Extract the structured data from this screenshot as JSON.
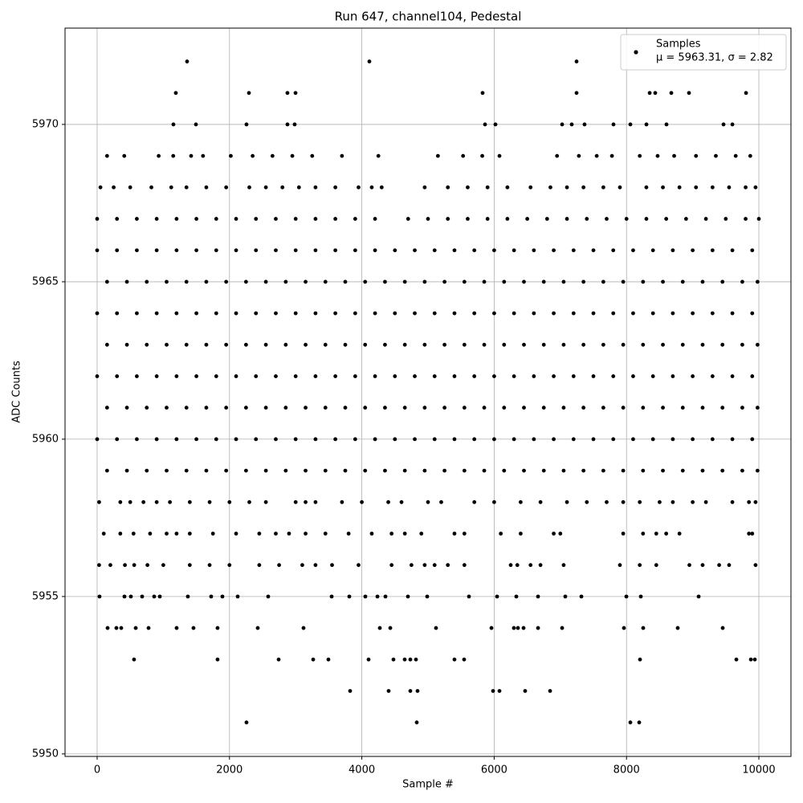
{
  "chart_data": {
    "type": "scatter",
    "title": "Run 647, channel104, Pedestal",
    "xlabel": "Sample #",
    "ylabel": "ADC Counts",
    "xlim": [
      -485,
      10485
    ],
    "ylim": [
      5949.92,
      5973.06
    ],
    "xticks": [
      0,
      2000,
      4000,
      6000,
      8000,
      10000
    ],
    "yticks": [
      5950,
      5955,
      5960,
      5965,
      5970
    ],
    "grid": true,
    "legend": "upper right",
    "series": [
      {
        "name": "Samples",
        "note": "μ = 5963.31, σ = 2.82",
        "color": "#000000",
        "x": [
          1359,
          4114,
          7245,
          1189,
          2294,
          2876,
          2998,
          5825,
          7245,
          8350,
          8434,
          8677,
          8944,
          9806,
          1153,
          1493,
          2257,
          2876,
          2985,
          5862,
          6019,
          7027,
          7172,
          7366,
          7803,
          8058,
          8301,
          8604,
          9466,
          9600,
          150,
          410,
          930,
          1150,
          1420,
          1600,
          2020,
          2350,
          2650,
          2950,
          3250,
          3700,
          4250,
          5150,
          5530,
          5820,
          6080,
          6950,
          7280,
          7550,
          7780,
          8200,
          8470,
          8720,
          9050,
          9350,
          9650,
          9870,
          50,
          250,
          500,
          820,
          1120,
          1350,
          1650,
          1950,
          2300,
          2550,
          2800,
          3050,
          3300,
          3600,
          3950,
          4150,
          4300,
          4950,
          5300,
          5600,
          5900,
          6200,
          6550,
          6850,
          7100,
          7350,
          7650,
          7900,
          8300,
          8550,
          8800,
          9050,
          9300,
          9550,
          9800,
          9950,
          0,
          300,
          600,
          900,
          1200,
          1500,
          1800,
          2100,
          2400,
          2700,
          3000,
          3300,
          3600,
          3900,
          4200,
          4700,
          5000,
          5300,
          5600,
          5900,
          6200,
          6500,
          6800,
          7100,
          7400,
          7700,
          8000,
          8300,
          8600,
          8900,
          9200,
          9500,
          9800,
          10000,
          0,
          300,
          600,
          900,
          1200,
          1500,
          1800,
          2100,
          2400,
          2700,
          3000,
          3300,
          3600,
          3900,
          4200,
          4500,
          4800,
          5100,
          5400,
          5700,
          6000,
          6300,
          6600,
          6900,
          7200,
          7500,
          7800,
          8100,
          8400,
          8700,
          9000,
          9300,
          9600,
          9900,
          150,
          450,
          750,
          1050,
          1350,
          1650,
          1950,
          2250,
          2550,
          2850,
          3150,
          3450,
          3750,
          4050,
          4350,
          4650,
          4950,
          5250,
          5550,
          5850,
          6150,
          6450,
          6750,
          7050,
          7350,
          7650,
          7950,
          8250,
          8550,
          8850,
          9150,
          9450,
          9750,
          9980,
          0,
          300,
          600,
          900,
          1200,
          1500,
          1800,
          2100,
          2400,
          2700,
          3000,
          3300,
          3600,
          3900,
          4200,
          4500,
          4800,
          5100,
          5400,
          5700,
          6000,
          6300,
          6600,
          6900,
          7200,
          7500,
          7800,
          8100,
          8400,
          8700,
          9000,
          9300,
          9600,
          9900,
          150,
          450,
          750,
          1050,
          1350,
          1650,
          1950,
          2250,
          2550,
          2850,
          3150,
          3450,
          3750,
          4050,
          4350,
          4650,
          4950,
          5250,
          5550,
          5850,
          6150,
          6450,
          6750,
          7050,
          7350,
          7650,
          7950,
          8250,
          8550,
          8850,
          9150,
          9450,
          9750,
          9980,
          0,
          300,
          600,
          900,
          1200,
          1500,
          1800,
          2100,
          2400,
          2700,
          3000,
          3300,
          3600,
          3900,
          4200,
          4500,
          4800,
          5100,
          5400,
          5700,
          6000,
          6300,
          6600,
          6900,
          7200,
          7500,
          7800,
          8100,
          8400,
          8700,
          9000,
          9300,
          9600,
          9900,
          150,
          450,
          750,
          1050,
          1350,
          1650,
          1950,
          2250,
          2550,
          2850,
          3150,
          3450,
          3750,
          4050,
          4350,
          4650,
          4950,
          5250,
          5550,
          5850,
          6150,
          6450,
          6750,
          7050,
          7350,
          7650,
          7950,
          8250,
          8550,
          8850,
          9150,
          9450,
          9750,
          9980,
          0,
          300,
          600,
          900,
          1200,
          1500,
          1800,
          2100,
          2400,
          2700,
          3000,
          3300,
          3600,
          3900,
          4200,
          4500,
          4800,
          5100,
          5400,
          5700,
          6000,
          6300,
          6600,
          6900,
          7200,
          7500,
          7800,
          8100,
          8400,
          8700,
          9000,
          9300,
          9600,
          9900,
          150,
          450,
          750,
          1050,
          1350,
          1650,
          1950,
          2250,
          2550,
          2850,
          3150,
          3450,
          3750,
          4050,
          4350,
          4650,
          4950,
          5250,
          5550,
          5850,
          6150,
          6450,
          6750,
          7050,
          7350,
          7650,
          7950,
          8250,
          8550,
          8850,
          9150,
          9450,
          9750,
          9980,
          30,
          350,
          500,
          700,
          900,
          1100,
          1400,
          1700,
          2000,
          2300,
          2550,
          3000,
          3150,
          3300,
          3700,
          4000,
          4400,
          4600,
          5000,
          5200,
          5700,
          6000,
          6400,
          6700,
          7100,
          7400,
          7700,
          7950,
          8200,
          8500,
          8700,
          9000,
          9200,
          9600,
          9850,
          9950,
          100,
          350,
          550,
          800,
          1050,
          1200,
          1400,
          1750,
          2100,
          2450,
          2700,
          2900,
          3150,
          3450,
          3800,
          4150,
          4450,
          4650,
          4900,
          5400,
          5550,
          6100,
          6400,
          6900,
          7000,
          7950,
          8250,
          8450,
          8600,
          8800,
          9850,
          9900,
          30,
          200,
          420,
          560,
          760,
          1000,
          1400,
          1700,
          2000,
          2450,
          2750,
          3100,
          3300,
          3550,
          3950,
          4450,
          4750,
          4950,
          5100,
          5300,
          5550,
          6250,
          6350,
          6550,
          6700,
          7050,
          7900,
          8200,
          8450,
          8950,
          9150,
          9400,
          9550,
          9950,
          36,
          413,
          510,
          680,
          862,
          947,
          1371,
          1723,
          1893,
          2124,
          2585,
          3544,
          3811,
          4053,
          4236,
          4357,
          4697,
          4988,
          5619,
          6044,
          6335,
          6663,
          7075,
          7318,
          7998,
          8216,
          9090,
          158,
          291,
          364,
          583,
          777,
          1201,
          1456,
          1820,
          2427,
          3119,
          4272,
          4430,
          5121,
          5959,
          6298,
          6359,
          6444,
          6663,
          7027,
          7961,
          8252,
          8774,
          9454,
          558,
          1820,
          2743,
          3265,
          3495,
          4102,
          4478,
          4648,
          4733,
          4818,
          5400,
          5546,
          8204,
          9660,
          9879,
          9939,
          3823,
          4405,
          4733,
          4842,
          5983,
          6080,
          6468,
          6845,
          2257,
          4830,
          8058,
          8192
        ],
        "values": [
          5972,
          5972,
          5972,
          5971,
          5971,
          5971,
          5971,
          5971,
          5971,
          5971,
          5971,
          5971,
          5971,
          5971,
          5970,
          5970,
          5970,
          5970,
          5970,
          5970,
          5970,
          5970,
          5970,
          5970,
          5970,
          5970,
          5970,
          5970,
          5970,
          5970,
          5969,
          5969,
          5969,
          5969,
          5969,
          5969,
          5969,
          5969,
          5969,
          5969,
          5969,
          5969,
          5969,
          5969,
          5969,
          5969,
          5969,
          5969,
          5969,
          5969,
          5969,
          5969,
          5969,
          5969,
          5969,
          5969,
          5969,
          5969,
          5968,
          5968,
          5968,
          5968,
          5968,
          5968,
          5968,
          5968,
          5968,
          5968,
          5968,
          5968,
          5968,
          5968,
          5968,
          5968,
          5968,
          5968,
          5968,
          5968,
          5968,
          5968,
          5968,
          5968,
          5968,
          5968,
          5968,
          5968,
          5968,
          5968,
          5968,
          5968,
          5968,
          5968,
          5968,
          5968,
          5967,
          5967,
          5967,
          5967,
          5967,
          5967,
          5967,
          5967,
          5967,
          5967,
          5967,
          5967,
          5967,
          5967,
          5967,
          5967,
          5967,
          5967,
          5967,
          5967,
          5967,
          5967,
          5967,
          5967,
          5967,
          5967,
          5967,
          5967,
          5967,
          5967,
          5967,
          5967,
          5967,
          5967,
          5966,
          5966,
          5966,
          5966,
          5966,
          5966,
          5966,
          5966,
          5966,
          5966,
          5966,
          5966,
          5966,
          5966,
          5966,
          5966,
          5966,
          5966,
          5966,
          5966,
          5966,
          5966,
          5966,
          5966,
          5966,
          5966,
          5966,
          5966,
          5966,
          5966,
          5966,
          5966,
          5966,
          5966,
          5965,
          5965,
          5965,
          5965,
          5965,
          5965,
          5965,
          5965,
          5965,
          5965,
          5965,
          5965,
          5965,
          5965,
          5965,
          5965,
          5965,
          5965,
          5965,
          5965,
          5965,
          5965,
          5965,
          5965,
          5965,
          5965,
          5965,
          5965,
          5965,
          5965,
          5965,
          5965,
          5965,
          5965,
          5964,
          5964,
          5964,
          5964,
          5964,
          5964,
          5964,
          5964,
          5964,
          5964,
          5964,
          5964,
          5964,
          5964,
          5964,
          5964,
          5964,
          5964,
          5964,
          5964,
          5964,
          5964,
          5964,
          5964,
          5964,
          5964,
          5964,
          5964,
          5964,
          5964,
          5964,
          5964,
          5964,
          5964,
          5963,
          5963,
          5963,
          5963,
          5963,
          5963,
          5963,
          5963,
          5963,
          5963,
          5963,
          5963,
          5963,
          5963,
          5963,
          5963,
          5963,
          5963,
          5963,
          5963,
          5963,
          5963,
          5963,
          5963,
          5963,
          5963,
          5963,
          5963,
          5963,
          5963,
          5963,
          5963,
          5963,
          5963,
          5962,
          5962,
          5962,
          5962,
          5962,
          5962,
          5962,
          5962,
          5962,
          5962,
          5962,
          5962,
          5962,
          5962,
          5962,
          5962,
          5962,
          5962,
          5962,
          5962,
          5962,
          5962,
          5962,
          5962,
          5962,
          5962,
          5962,
          5962,
          5962,
          5962,
          5962,
          5962,
          5962,
          5962,
          5961,
          5961,
          5961,
          5961,
          5961,
          5961,
          5961,
          5961,
          5961,
          5961,
          5961,
          5961,
          5961,
          5961,
          5961,
          5961,
          5961,
          5961,
          5961,
          5961,
          5961,
          5961,
          5961,
          5961,
          5961,
          5961,
          5961,
          5961,
          5961,
          5961,
          5961,
          5961,
          5961,
          5961,
          5960,
          5960,
          5960,
          5960,
          5960,
          5960,
          5960,
          5960,
          5960,
          5960,
          5960,
          5960,
          5960,
          5960,
          5960,
          5960,
          5960,
          5960,
          5960,
          5960,
          5960,
          5960,
          5960,
          5960,
          5960,
          5960,
          5960,
          5960,
          5960,
          5960,
          5960,
          5960,
          5960,
          5960,
          5959,
          5959,
          5959,
          5959,
          5959,
          5959,
          5959,
          5959,
          5959,
          5959,
          5959,
          5959,
          5959,
          5959,
          5959,
          5959,
          5959,
          5959,
          5959,
          5959,
          5959,
          5959,
          5959,
          5959,
          5959,
          5959,
          5959,
          5959,
          5959,
          5959,
          5959,
          5959,
          5959,
          5959,
          5958,
          5958,
          5958,
          5958,
          5958,
          5958,
          5958,
          5958,
          5958,
          5958,
          5958,
          5958,
          5958,
          5958,
          5958,
          5958,
          5958,
          5958,
          5958,
          5958,
          5958,
          5958,
          5958,
          5958,
          5958,
          5958,
          5958,
          5958,
          5958,
          5958,
          5958,
          5958,
          5958,
          5958,
          5958,
          5958,
          5957,
          5957,
          5957,
          5957,
          5957,
          5957,
          5957,
          5957,
          5957,
          5957,
          5957,
          5957,
          5957,
          5957,
          5957,
          5957,
          5957,
          5957,
          5957,
          5957,
          5957,
          5957,
          5957,
          5957,
          5957,
          5957,
          5957,
          5957,
          5957,
          5957,
          5957,
          5957,
          5956,
          5956,
          5956,
          5956,
          5956,
          5956,
          5956,
          5956,
          5956,
          5956,
          5956,
          5956,
          5956,
          5956,
          5956,
          5956,
          5956,
          5956,
          5956,
          5956,
          5956,
          5956,
          5956,
          5956,
          5956,
          5956,
          5956,
          5956,
          5956,
          5956,
          5956,
          5956,
          5956,
          5956,
          5955,
          5955,
          5955,
          5955,
          5955,
          5955,
          5955,
          5955,
          5955,
          5955,
          5955,
          5955,
          5955,
          5955,
          5955,
          5955,
          5955,
          5955,
          5955,
          5955,
          5955,
          5955,
          5955,
          5955,
          5955,
          5955,
          5955,
          5954,
          5954,
          5954,
          5954,
          5954,
          5954,
          5954,
          5954,
          5954,
          5954,
          5954,
          5954,
          5954,
          5954,
          5954,
          5954,
          5954,
          5954,
          5954,
          5954,
          5954,
          5954,
          5954,
          5953,
          5953,
          5953,
          5953,
          5953,
          5953,
          5953,
          5953,
          5953,
          5953,
          5953,
          5953,
          5953,
          5953,
          5953,
          5953,
          5952,
          5952,
          5952,
          5952,
          5952,
          5952,
          5952,
          5952,
          5951,
          5951,
          5951,
          5951
        ]
      }
    ]
  }
}
